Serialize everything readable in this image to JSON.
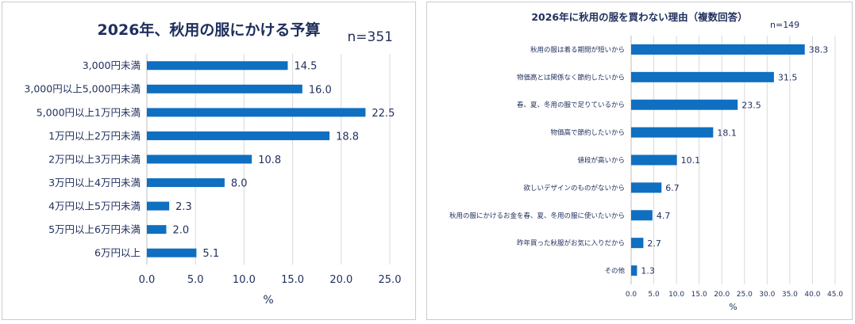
{
  "chart_data": [
    {
      "type": "bar",
      "orientation": "horizontal",
      "title": "2026年、秋用の服にかける予算",
      "annotation": "n=351",
      "xlabel": "%",
      "ylabel": "",
      "xlim": [
        0,
        25
      ],
      "xticks": [
        "0.0",
        "5.0",
        "10.0",
        "15.0",
        "20.0",
        "25.0"
      ],
      "grid": true,
      "categories": [
        "3,000円未満",
        "3,000円以上5,000円未満",
        "5,000円以上1万円未満",
        "1万円以上2万円未満",
        "2万円以上3万円未満",
        "3万円以上4万円未満",
        "4万円以上5万円未満",
        "5万円以上6万円未満",
        "6万円以上"
      ],
      "values": [
        14.5,
        16.0,
        22.5,
        18.8,
        10.8,
        8.0,
        2.3,
        2.0,
        5.1
      ],
      "value_labels": [
        "14.5",
        "16.0",
        "22.5",
        "18.8",
        "10.8",
        "8.0",
        "2.3",
        "2.0",
        "5.1"
      ],
      "bar_color": "#0f6fc1"
    },
    {
      "type": "bar",
      "orientation": "horizontal",
      "title": "2026年に秋用の服を買わない理由（複数回答）",
      "annotation": "n=149",
      "xlabel": "%",
      "ylabel": "",
      "xlim": [
        0,
        45
      ],
      "xticks": [
        "0.0",
        "5.0",
        "10.0",
        "15.0",
        "20.0",
        "25.0",
        "30.0",
        "35.0",
        "40.0",
        "45.0"
      ],
      "grid": true,
      "categories": [
        "秋用の服は着る期間が短いから",
        "物価高とは関係なく節約したいから",
        "春、夏、冬用の服で足りているから",
        "物価高で節約したいから",
        "値段が高いから",
        "欲しいデザインのものがないから",
        "秋用の服にかけるお金を春、夏、冬用の服に使いたいから",
        "昨年買った秋服がお気に入りだから",
        "その他"
      ],
      "values": [
        38.3,
        31.5,
        23.5,
        18.1,
        10.1,
        6.7,
        4.7,
        2.7,
        1.3
      ],
      "value_labels": [
        "38.3",
        "31.5",
        "23.5",
        "18.1",
        "10.1",
        "6.7",
        "4.7",
        "2.7",
        "1.3"
      ],
      "bar_color": "#0f6fc1"
    }
  ]
}
